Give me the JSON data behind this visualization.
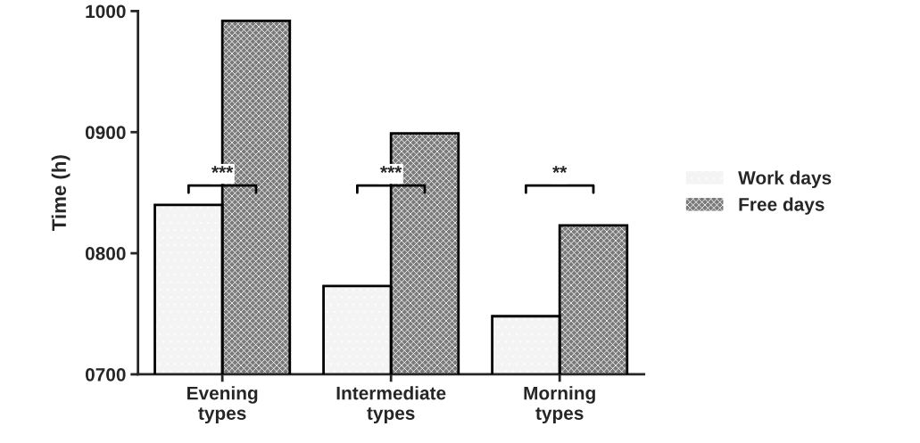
{
  "chart_data": {
    "type": "bar",
    "ylabel": "Time (h)",
    "categories": [
      "Evening\ntypes",
      "Intermediate\ntypes",
      "Morning\ntypes"
    ],
    "series": [
      {
        "name": "Work days",
        "color": "#f4f4f4",
        "values": [
          840,
          773,
          748
        ]
      },
      {
        "name": "Free days",
        "color": "#7a7a7a",
        "values": [
          992,
          899,
          823
        ]
      }
    ],
    "ylim": [
      700,
      1000
    ],
    "yticks": [
      {
        "value": 700,
        "label": "0700"
      },
      {
        "value": 800,
        "label": "0800"
      },
      {
        "value": 900,
        "label": "0900"
      },
      {
        "value": 1000,
        "label": "1000"
      }
    ],
    "annotations": [
      "***",
      "***",
      "**"
    ],
    "grid": false,
    "legend": "right"
  }
}
